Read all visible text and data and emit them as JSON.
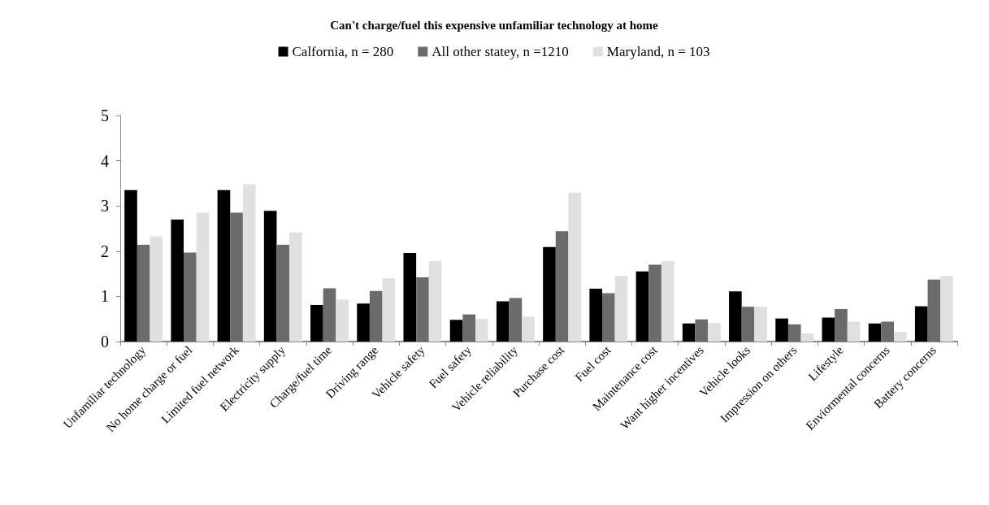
{
  "chart_data": {
    "type": "bar",
    "title": "Can't charge/fuel this expensive unfamiliar technology at home",
    "categories": [
      "Unfamiliar technology",
      "No home charge or fuel",
      "Limited fuel network",
      "Electricity supply",
      "Charge/fuel time",
      "Driving range",
      "Vehicle safety",
      "Fuel safety",
      "Vehicle reliability",
      "Purchase cost",
      "Fuel cost",
      "Maintenance cost",
      "Want higher incentives",
      "Vehicle looks",
      "Impression on others",
      "Lifestyle",
      "Enviormental concerns",
      "Battery concerns"
    ],
    "series": [
      {
        "name": "Calfornia, n = 280",
        "color": "#000000",
        "values": [
          3.35,
          2.7,
          3.35,
          2.89,
          0.81,
          0.84,
          1.96,
          0.48,
          0.89,
          2.09,
          1.17,
          1.55,
          0.4,
          1.11,
          0.51,
          0.53,
          0.4,
          0.78
        ]
      },
      {
        "name": "All other statey, n =1210",
        "color": "#6b6b6b",
        "values": [
          2.14,
          1.97,
          2.85,
          2.14,
          1.18,
          1.12,
          1.42,
          0.6,
          0.96,
          2.44,
          1.07,
          1.7,
          0.49,
          0.77,
          0.38,
          0.72,
          0.44,
          1.37
        ]
      },
      {
        "name": "Maryland, n = 103",
        "color": "#e0e0e0",
        "values": [
          2.33,
          2.85,
          3.48,
          2.41,
          0.93,
          1.4,
          1.78,
          0.5,
          0.55,
          3.29,
          1.45,
          1.78,
          0.41,
          0.77,
          0.18,
          0.44,
          0.21,
          1.45
        ]
      }
    ],
    "ylim": [
      0,
      5
    ],
    "yticks": [
      0,
      1,
      2,
      3,
      4,
      5
    ],
    "grid": false,
    "legend": "top"
  }
}
